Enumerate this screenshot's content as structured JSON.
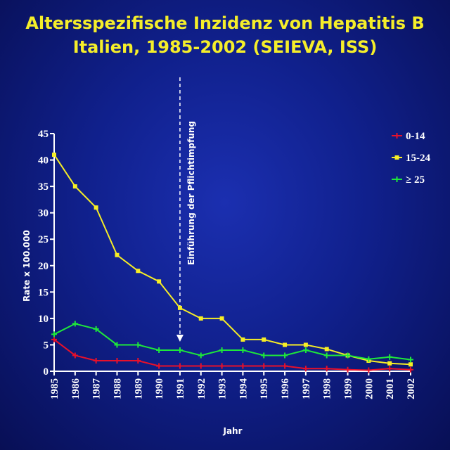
{
  "title": {
    "line1": "Altersspezifische Inzidenz von Hepatitis B",
    "line2": "Italien, 1985-2002 (SEIEVA, ISS)"
  },
  "chart_data": {
    "type": "line",
    "xlabel": "Jahr",
    "ylabel": "Rate x 100.000",
    "ylim": [
      0,
      45
    ],
    "yticks": [
      0,
      5,
      10,
      15,
      20,
      25,
      30,
      35,
      40,
      45
    ],
    "categories": [
      "1985",
      "1986",
      "1987",
      "1988",
      "1989",
      "1990",
      "1991",
      "1992",
      "1993",
      "1994",
      "1995",
      "1996",
      "1997",
      "1998",
      "1999",
      "2000",
      "2001",
      "2002"
    ],
    "grid": false,
    "legend_position": "top-right",
    "series": [
      {
        "name": "0-14",
        "color": "#e8102a",
        "marker": "plus",
        "values": [
          6,
          3,
          2,
          2,
          2,
          1,
          1,
          1,
          1,
          1,
          1,
          1,
          0.5,
          0.5,
          0.3,
          0.2,
          0.5,
          0.3
        ]
      },
      {
        "name": "15-24",
        "color": "#f7ee25",
        "marker": "square",
        "values": [
          41,
          35,
          31,
          22,
          19,
          17,
          12,
          10,
          10,
          6,
          6,
          5,
          5,
          4.2,
          3,
          2,
          1.5,
          1.3
        ]
      },
      {
        "name": "≥ 25",
        "color": "#1ee83a",
        "marker": "plus",
        "values": [
          7,
          9,
          8,
          5,
          5,
          4,
          4,
          3,
          4,
          4,
          3,
          3,
          4,
          3,
          3,
          2.3,
          2.7,
          2.2
        ]
      }
    ],
    "annotation": {
      "text": "Einführung der Pflichtimpfung",
      "x": "1991",
      "style": "dashed-arrow"
    }
  }
}
